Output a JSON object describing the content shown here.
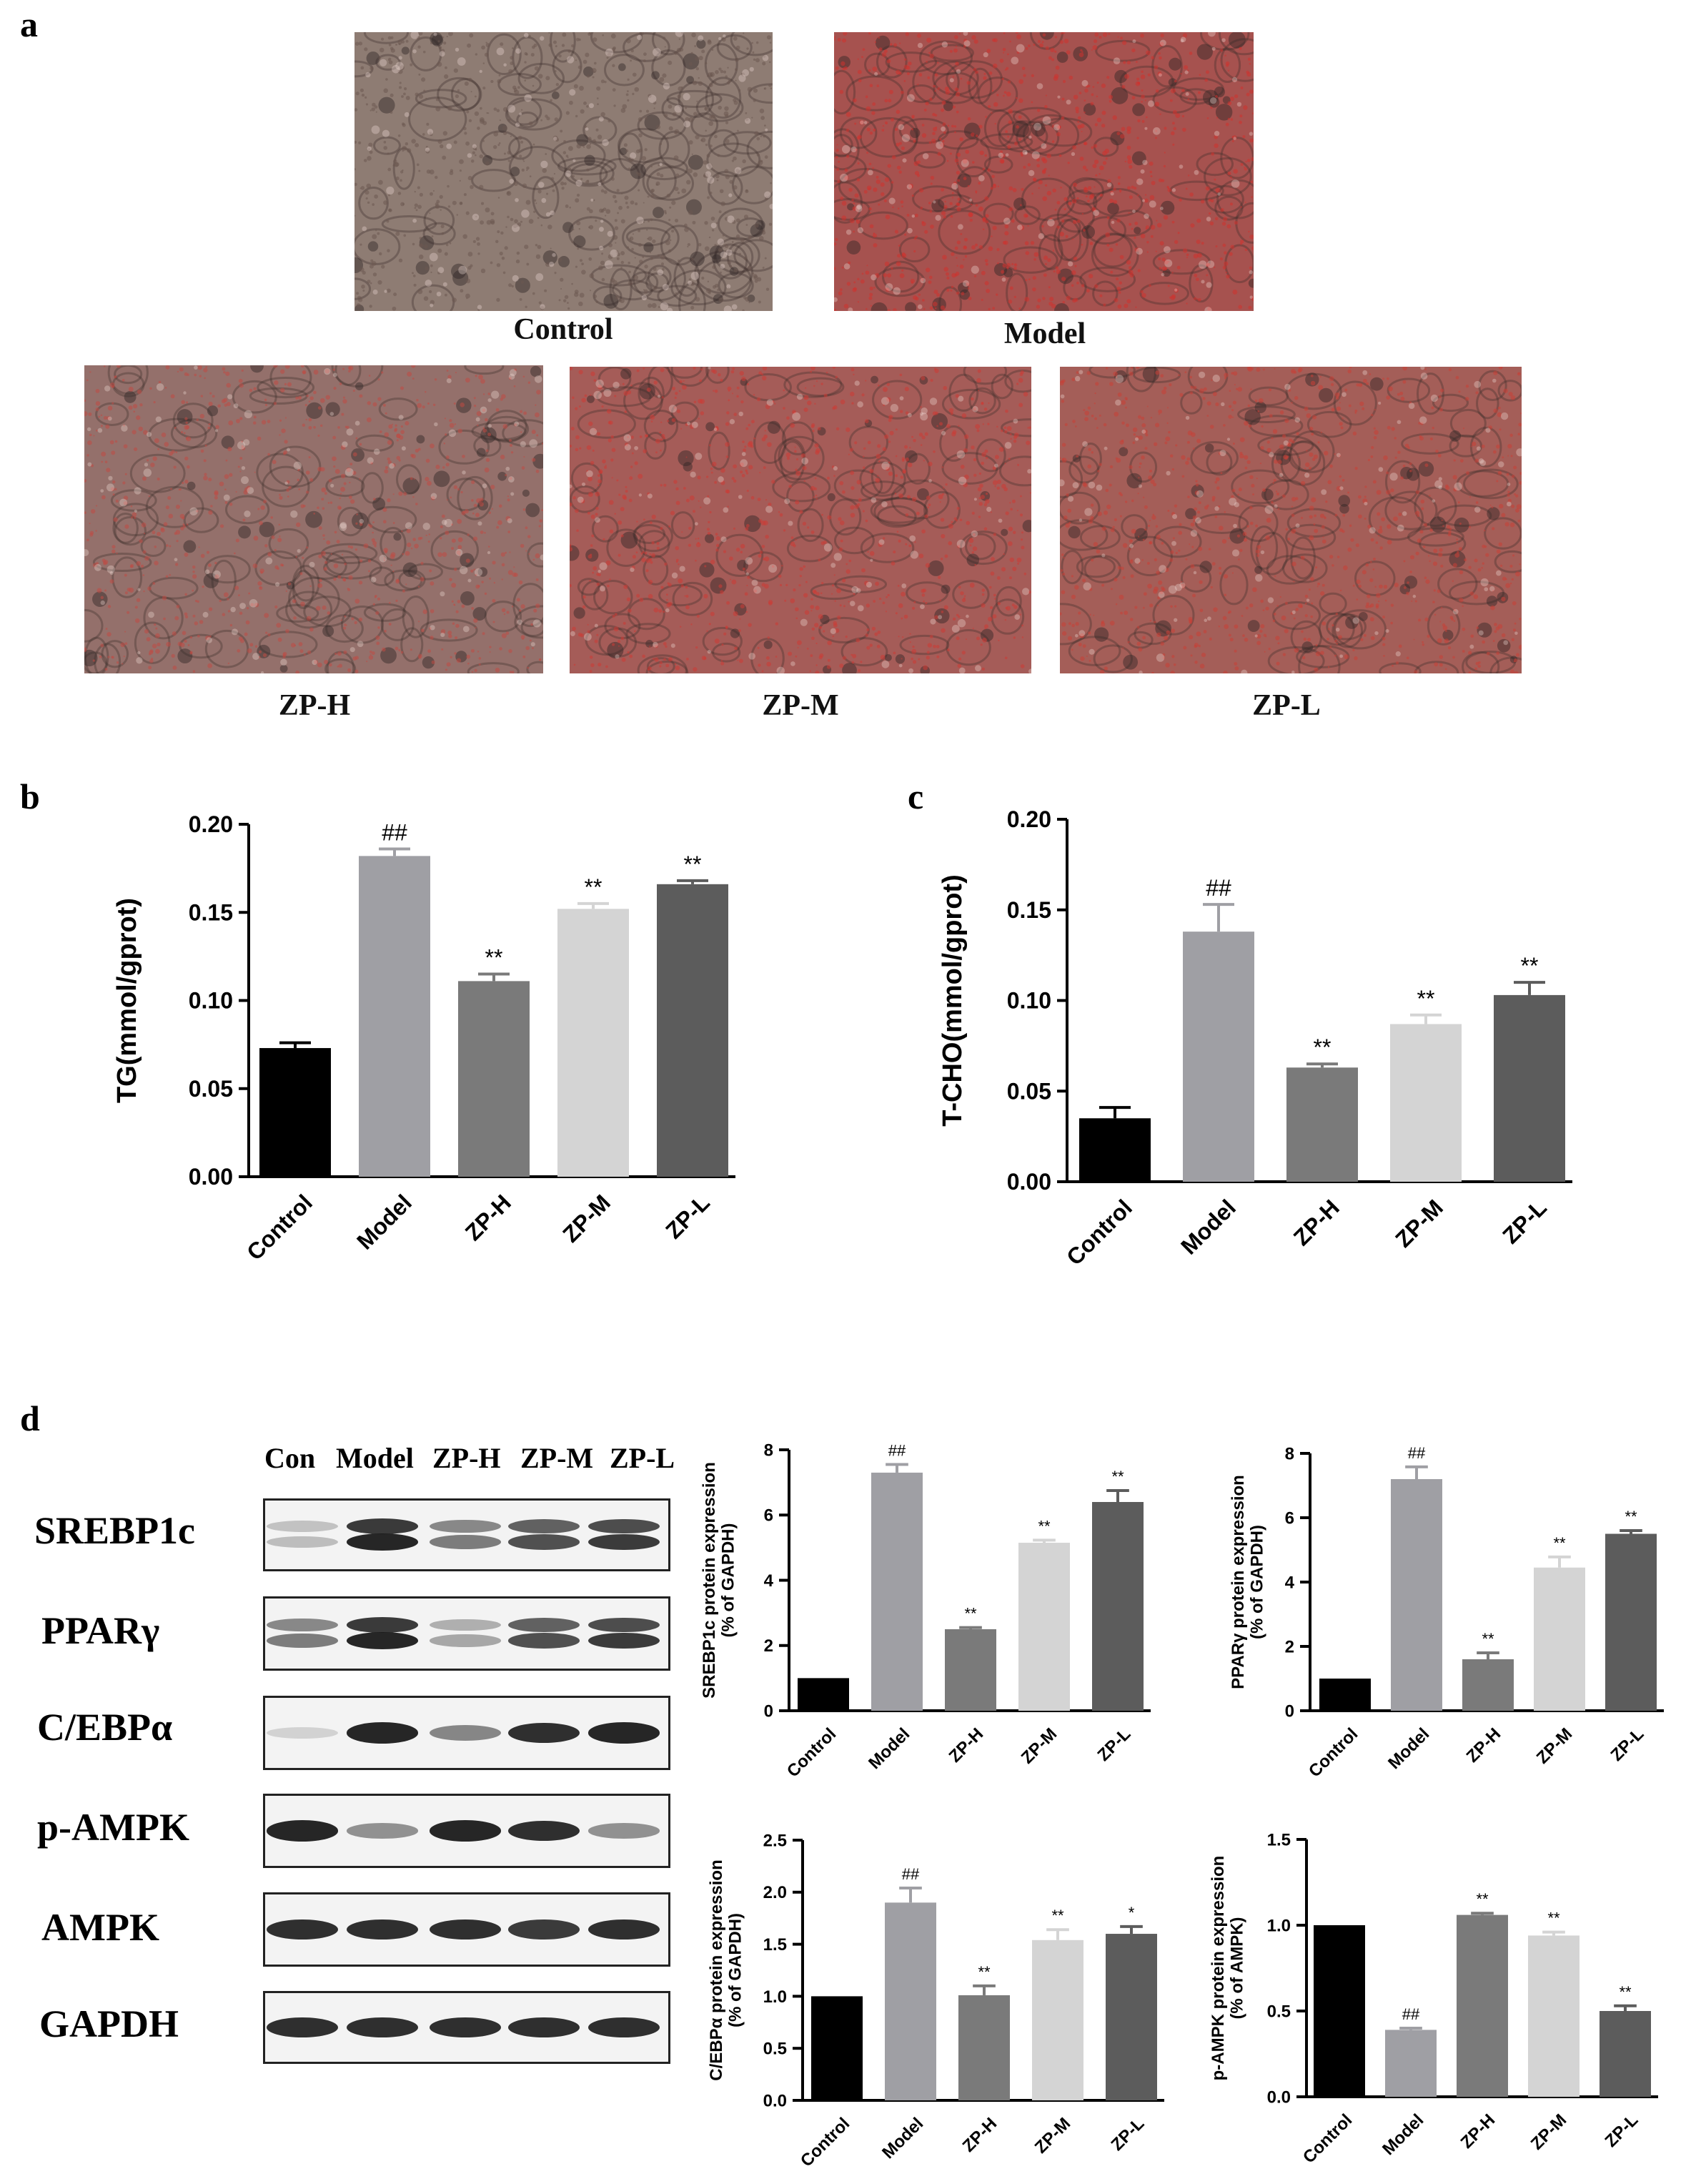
{
  "panel_letters": {
    "a": "a",
    "b": "b",
    "c": "c",
    "d": "d"
  },
  "micrographs": {
    "control": {
      "label": "Control",
      "tint": "#8e7c73",
      "dots": "#6c5750"
    },
    "model": {
      "label": "Model",
      "tint": "#a6524f",
      "dots": "#d0322e"
    },
    "zph": {
      "label": "ZP-H",
      "tint": "#94706b",
      "dots": "#c04a44"
    },
    "zpm": {
      "label": "ZP-M",
      "tint": "#a55c58",
      "dots": "#cd3b35"
    },
    "zpl": {
      "label": "ZP-L",
      "tint": "#a45e58",
      "dots": "#c93f37"
    }
  },
  "blot": {
    "lanes": [
      "Con",
      "Model",
      "ZP-H",
      "ZP-M",
      "ZP-L"
    ],
    "rows": [
      {
        "protein": "SREBP1c",
        "intensity": [
          0.25,
          0.95,
          0.55,
          0.75,
          0.85
        ],
        "double": true
      },
      {
        "protein": "PPARγ",
        "intensity": [
          0.55,
          0.95,
          0.35,
          0.75,
          0.85
        ],
        "double": true
      },
      {
        "protein": "C/EBPα",
        "intensity": [
          0.15,
          0.95,
          0.5,
          0.9,
          0.95
        ],
        "double": false
      },
      {
        "protein": "p-AMPK",
        "intensity": [
          0.95,
          0.45,
          0.95,
          0.9,
          0.45
        ],
        "double": false
      },
      {
        "protein": "AMPK",
        "intensity": [
          0.9,
          0.9,
          0.9,
          0.85,
          0.9
        ],
        "double": false
      },
      {
        "protein": "GAPDH",
        "intensity": [
          0.9,
          0.9,
          0.9,
          0.9,
          0.9
        ],
        "double": false
      }
    ]
  },
  "chart_data": [
    {
      "id": "b",
      "type": "bar",
      "categories": [
        "Control",
        "Model",
        "ZP-H",
        "ZP-M",
        "ZP-L"
      ],
      "values": [
        0.073,
        0.182,
        0.111,
        0.152,
        0.166
      ],
      "errors": [
        0.003,
        0.004,
        0.004,
        0.003,
        0.002
      ],
      "annotations": [
        "",
        "##",
        "**",
        "**",
        "**"
      ],
      "ylabel": "TG(mmol/gprot)",
      "ylim": [
        0,
        0.2
      ],
      "yticks": [
        "0.00",
        "0.05",
        "0.10",
        "0.15",
        "0.20"
      ],
      "colors": [
        "#000000",
        "#9f9fa4",
        "#7a7a7a",
        "#d4d4d4",
        "#5c5c5c"
      ]
    },
    {
      "id": "c",
      "type": "bar",
      "categories": [
        "Control",
        "Model",
        "ZP-H",
        "ZP-M",
        "ZP-L"
      ],
      "values": [
        0.035,
        0.138,
        0.063,
        0.087,
        0.103
      ],
      "errors": [
        0.006,
        0.015,
        0.002,
        0.005,
        0.007
      ],
      "annotations": [
        "",
        "##",
        "**",
        "**",
        "**"
      ],
      "ylabel": "T-CHO(mmol/gprot)",
      "ylim": [
        0,
        0.2
      ],
      "yticks": [
        "0.00",
        "0.05",
        "0.10",
        "0.15",
        "0.20"
      ],
      "colors": [
        "#000000",
        "#9f9fa4",
        "#7a7a7a",
        "#d4d4d4",
        "#5c5c5c"
      ]
    },
    {
      "id": "d1",
      "type": "bar",
      "categories": [
        "Control",
        "Model",
        "ZP-H",
        "ZP-M",
        "ZP-L"
      ],
      "values": [
        1.0,
        7.3,
        2.5,
        5.15,
        6.4
      ],
      "errors": [
        0,
        0.25,
        0.05,
        0.08,
        0.35
      ],
      "annotations": [
        "",
        "##",
        "**",
        "**",
        "**"
      ],
      "ylabel": [
        "SREBP1c protein expression",
        "(% of GAPDH)"
      ],
      "ylim": [
        0,
        8
      ],
      "yticks": [
        "0",
        "2",
        "4",
        "6",
        "8"
      ],
      "colors": [
        "#000000",
        "#9f9fa4",
        "#7a7a7a",
        "#d4d4d4",
        "#5c5c5c"
      ]
    },
    {
      "id": "d2",
      "type": "bar",
      "categories": [
        "Control",
        "Model",
        "ZP-H",
        "ZP-M",
        "ZP-L"
      ],
      "values": [
        1.0,
        7.2,
        1.6,
        4.45,
        5.5
      ],
      "errors": [
        0,
        0.38,
        0.2,
        0.33,
        0.1
      ],
      "annotations": [
        "",
        "##",
        "**",
        "**",
        "**"
      ],
      "ylabel": [
        "PPARγ protein expression",
        "(% of GAPDH)"
      ],
      "ylim": [
        0,
        8
      ],
      "yticks": [
        "0",
        "2",
        "4",
        "6",
        "8"
      ],
      "colors": [
        "#000000",
        "#9f9fa4",
        "#7a7a7a",
        "#d4d4d4",
        "#5c5c5c"
      ]
    },
    {
      "id": "d3",
      "type": "bar",
      "categories": [
        "Control",
        "Model",
        "ZP-H",
        "ZP-M",
        "ZP-L"
      ],
      "values": [
        1.0,
        1.9,
        1.01,
        1.54,
        1.6
      ],
      "errors": [
        0,
        0.14,
        0.09,
        0.1,
        0.07
      ],
      "annotations": [
        "",
        "##",
        "**",
        "**",
        "*"
      ],
      "ylabel": [
        "C/EBPα protein expression",
        "(% of GAPDH)"
      ],
      "ylim": [
        0,
        2.5
      ],
      "yticks": [
        "0.0",
        "0.5",
        "1.0",
        "1.5",
        "2.0",
        "2.5"
      ],
      "colors": [
        "#000000",
        "#9f9fa4",
        "#7a7a7a",
        "#d4d4d4",
        "#5c5c5c"
      ]
    },
    {
      "id": "d4",
      "type": "bar",
      "categories": [
        "Control",
        "Model",
        "ZP-H",
        "ZP-M",
        "ZP-L"
      ],
      "values": [
        1.0,
        0.39,
        1.06,
        0.94,
        0.5
      ],
      "errors": [
        0,
        0.01,
        0.01,
        0.02,
        0.03
      ],
      "annotations": [
        "",
        "##",
        "**",
        "**",
        "**"
      ],
      "ylabel": [
        "p-AMPK protein expression",
        "(% of AMPK)"
      ],
      "ylim": [
        0,
        1.5
      ],
      "yticks": [
        "0.0",
        "0.5",
        "1.0",
        "1.5"
      ],
      "colors": [
        "#000000",
        "#9f9fa4",
        "#7a7a7a",
        "#d4d4d4",
        "#5c5c5c"
      ]
    }
  ]
}
